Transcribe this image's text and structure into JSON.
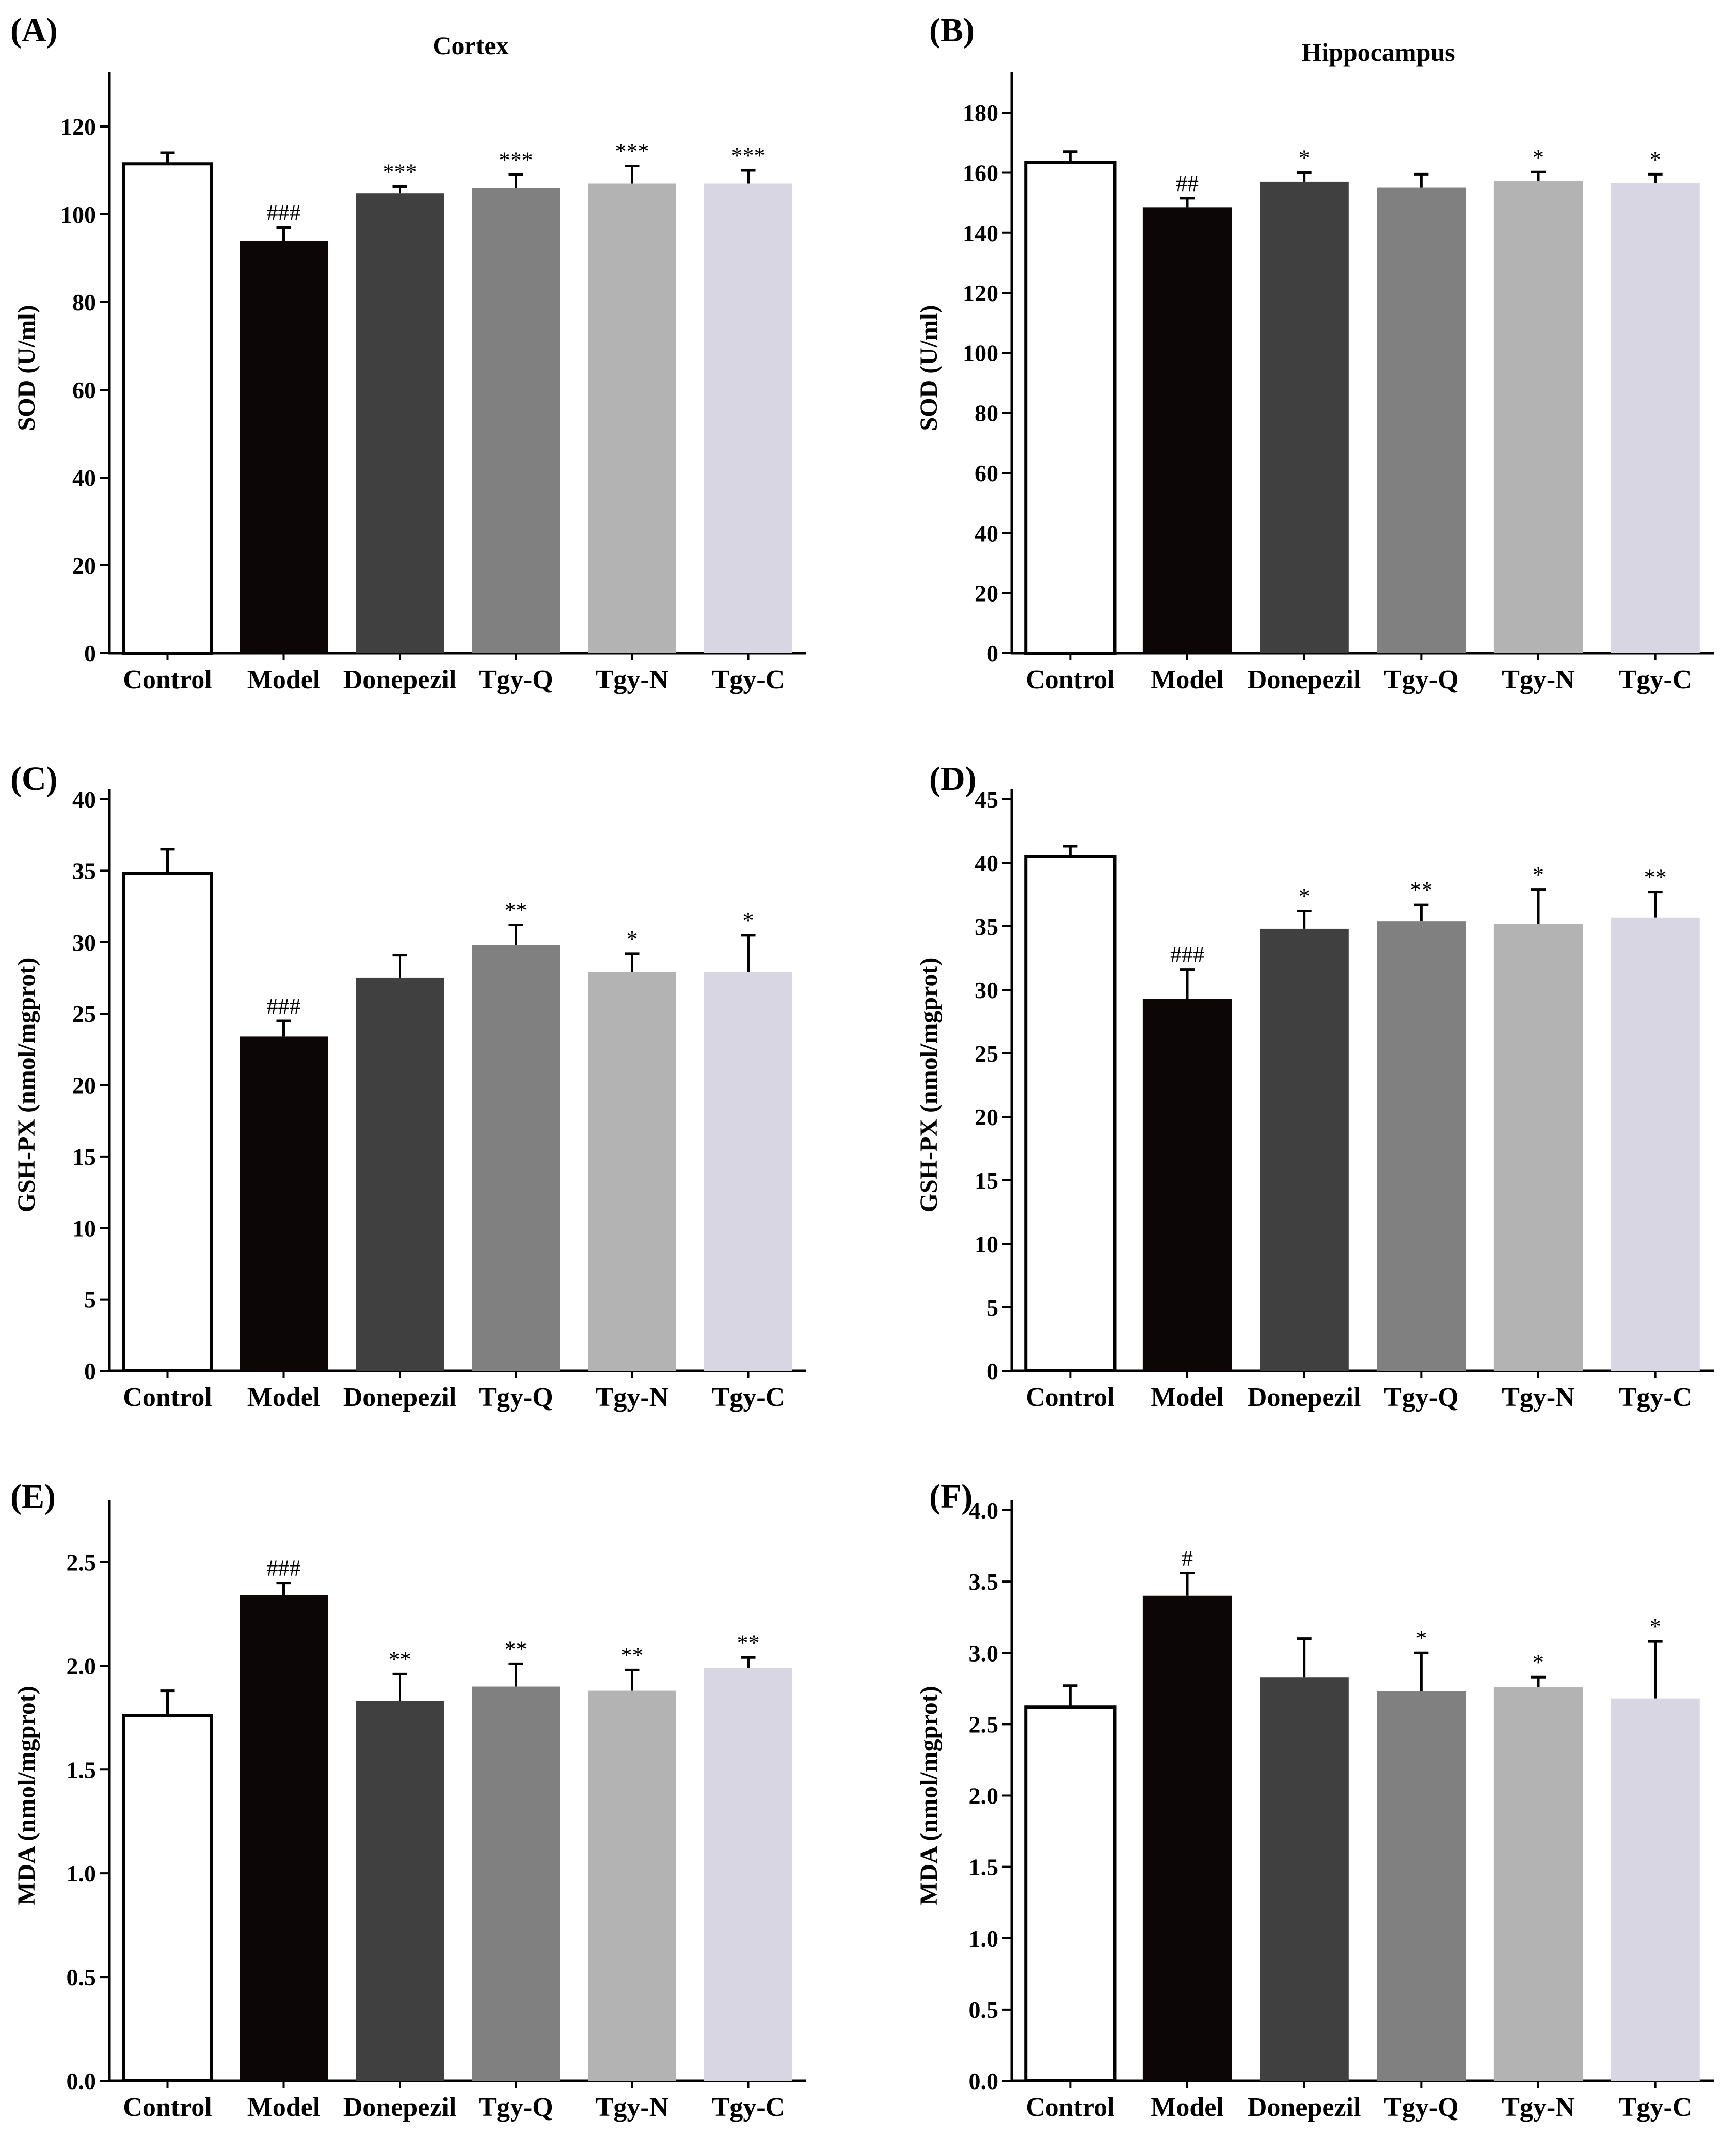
{
  "chart_data": [
    {
      "id": "A",
      "panel_label": "(A)",
      "type": "bar",
      "title": "Cortex",
      "ylabel": "SOD (U/ml)",
      "xlabel": "",
      "ylim": [
        0,
        130
      ],
      "yticks": [
        0,
        20,
        40,
        60,
        80,
        100,
        120
      ],
      "categories": [
        "Control",
        "Model",
        "Donepezil",
        "Tgy-Q",
        "Tgy-N",
        "Tgy-C"
      ],
      "values": [
        111.5,
        94.0,
        104.8,
        106.0,
        107.0,
        107.0
      ],
      "errors": [
        2.5,
        3.0,
        1.5,
        3.0,
        4.0,
        3.0
      ],
      "significance": [
        "",
        "###",
        "***",
        "***",
        "***",
        "***"
      ]
    },
    {
      "id": "B",
      "panel_label": "(B)",
      "type": "bar",
      "title": "Hippocampus",
      "ylabel": "SOD (U/ml)",
      "xlabel": "",
      "ylim": [
        0,
        190
      ],
      "yticks": [
        0,
        20,
        40,
        60,
        80,
        100,
        120,
        140,
        160,
        180
      ],
      "categories": [
        "Control",
        "Model",
        "Donepezil",
        "Tgy-Q",
        "Tgy-N",
        "Tgy-C"
      ],
      "values": [
        163.5,
        148.5,
        157.0,
        155.0,
        157.2,
        156.5
      ],
      "errors": [
        3.5,
        3.0,
        3.0,
        4.5,
        3.0,
        3.0
      ],
      "significance": [
        "",
        "##",
        "*",
        "",
        "*",
        "*"
      ]
    },
    {
      "id": "C",
      "panel_label": "(C)",
      "type": "bar",
      "title": "",
      "ylabel": "GSH-PX (nmol/mgprot)",
      "xlabel": "",
      "ylim": [
        0,
        40
      ],
      "yticks": [
        0,
        5,
        10,
        15,
        20,
        25,
        30,
        35,
        40
      ],
      "categories": [
        "Control",
        "Model",
        "Donepezil",
        "Tgy-Q",
        "Tgy-N",
        "Tgy-C"
      ],
      "values": [
        34.8,
        23.4,
        27.5,
        29.8,
        27.9,
        27.9
      ],
      "errors": [
        1.7,
        1.1,
        1.6,
        1.4,
        1.3,
        2.6
      ],
      "significance": [
        "",
        "###",
        "",
        "**",
        "*",
        "*"
      ]
    },
    {
      "id": "D",
      "panel_label": "(D)",
      "type": "bar",
      "title": "",
      "ylabel": "GSH-PX (nmol/mgprot)",
      "xlabel": "",
      "ylim": [
        0,
        45
      ],
      "yticks": [
        0,
        5,
        10,
        15,
        20,
        25,
        30,
        35,
        40,
        45
      ],
      "categories": [
        "Control",
        "Model",
        "Donepezil",
        "Tgy-Q",
        "Tgy-N",
        "Tgy-C"
      ],
      "values": [
        40.5,
        29.3,
        34.8,
        35.4,
        35.2,
        35.7
      ],
      "errors": [
        0.8,
        2.3,
        1.4,
        1.3,
        2.7,
        2.0
      ],
      "significance": [
        "",
        "###",
        "*",
        "**",
        "*",
        "**"
      ]
    },
    {
      "id": "E",
      "panel_label": "(E)",
      "type": "bar",
      "title": "",
      "ylabel": "MDA (nmol/mgprot)",
      "xlabel": "",
      "ylim": [
        0,
        2.75
      ],
      "yticks": [
        0.0,
        0.5,
        1.0,
        1.5,
        2.0,
        2.5
      ],
      "ytick_labels": [
        "0.0",
        "0.5",
        "1.0",
        "1.5",
        "2.0",
        "2.5"
      ],
      "categories": [
        "Control",
        "Model",
        "Donepezil",
        "Tgy-Q",
        "Tgy-N",
        "Tgy-C"
      ],
      "values": [
        1.76,
        2.34,
        1.83,
        1.9,
        1.88,
        1.99
      ],
      "errors": [
        0.12,
        0.06,
        0.13,
        0.11,
        0.1,
        0.05
      ],
      "significance": [
        "",
        "###",
        "**",
        "**",
        "**",
        "**"
      ]
    },
    {
      "id": "F",
      "panel_label": "(F)",
      "type": "bar",
      "title": "",
      "ylabel": "MDA (nmol/mgprot)",
      "xlabel": "",
      "ylim": [
        0,
        4.0
      ],
      "yticks": [
        0.0,
        0.5,
        1.0,
        1.5,
        2.0,
        2.5,
        3.0,
        3.5,
        4.0
      ],
      "ytick_labels": [
        "0.0",
        "0.5",
        "1.0",
        "1.5",
        "2.0",
        "2.5",
        "3.0",
        "3.5",
        "4.0"
      ],
      "categories": [
        "Control",
        "Model",
        "Donepezil",
        "Tgy-Q",
        "Tgy-N",
        "Tgy-C"
      ],
      "values": [
        2.62,
        3.4,
        2.83,
        2.73,
        2.76,
        2.68
      ],
      "errors": [
        0.15,
        0.16,
        0.27,
        0.27,
        0.07,
        0.4
      ],
      "significance": [
        "",
        "#",
        "",
        "*",
        "*",
        "*"
      ]
    }
  ],
  "colors": {
    "bars": [
      "#ffffff",
      "#0d0607",
      "#404040",
      "#808080",
      "#b3b3b3",
      "#d8d6e2"
    ],
    "axis": "#000000",
    "stroke": "#000000"
  }
}
